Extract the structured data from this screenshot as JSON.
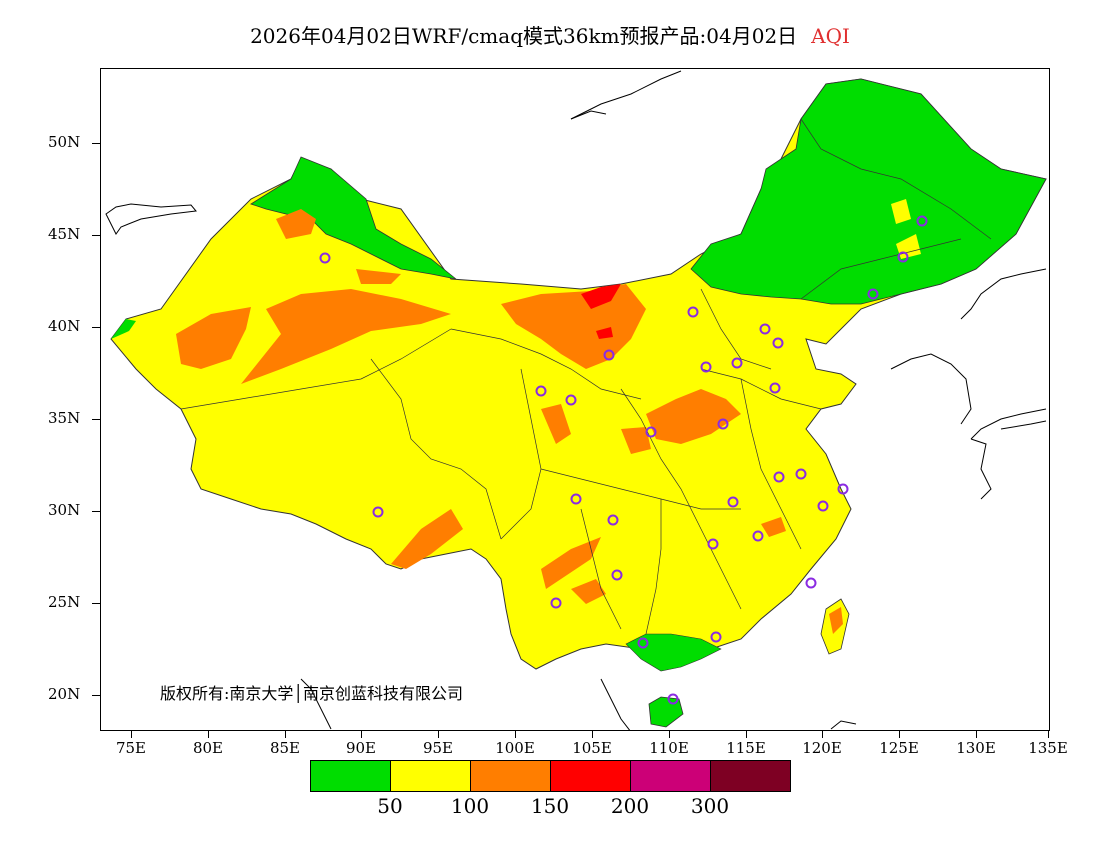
{
  "title": {
    "main": "2026年04月02日WRF/cmaq模式36km预报产品:04月02日",
    "variable": "AQI"
  },
  "y_axis": [
    "50N",
    "45N",
    "40N",
    "35N",
    "30N",
    "25N",
    "20N"
  ],
  "x_axis": [
    "75E",
    "80E",
    "85E",
    "90E",
    "95E",
    "100E",
    "105E",
    "110E",
    "115E",
    "120E",
    "125E",
    "130E",
    "135E"
  ],
  "copyright": "版权所有:南京大学│南京创蓝科技有限公司",
  "legend": {
    "colors": [
      "#00dd00",
      "#ffff00",
      "#ff7e00",
      "#ff0000",
      "#cc0077",
      "#7e0023"
    ],
    "labels": [
      "50",
      "100",
      "150",
      "200",
      "300"
    ]
  },
  "colors": {
    "good": "#00dd00",
    "moderate": "#ffff00",
    "sensitive": "#ff7e00",
    "unhealthy": "#ff0000",
    "marker": "#8a2be2",
    "title_accent": "#e03030"
  }
}
